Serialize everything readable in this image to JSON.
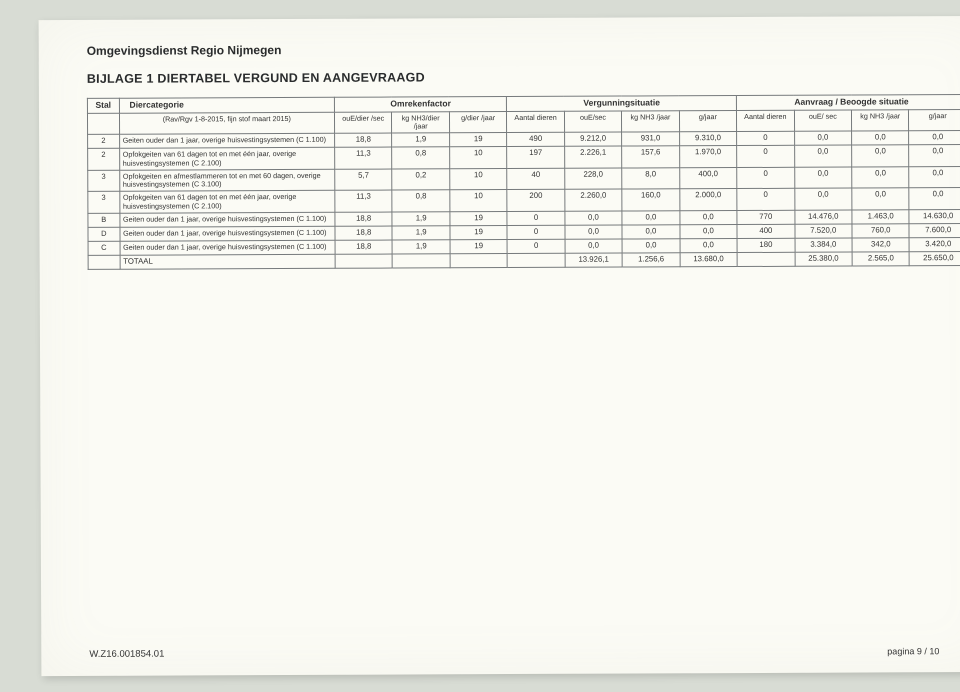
{
  "org": "Omgevingsdienst Regio Nijmegen",
  "title": "BIJLAGE 1 DIERTABEL VERGUND EN AANGEVRAAGD",
  "group_headers": {
    "stal": "Stal",
    "diercat": "Diercategorie",
    "omreken": "Omrekenfactor",
    "vergun": "Vergunningsituatie",
    "aanvraag": "Aanvraag / Beoogde situatie"
  },
  "sub_headers": {
    "rav": "(Rav/Rgv 1-8-2015, fijn stof maart 2015)",
    "c1": "ouE/dier /sec",
    "c2": "kg NH3/dier /jaar",
    "c3": "g/dier /jaar",
    "c4": "Aantal dieren",
    "c5": "ouE/sec",
    "c6": "kg NH3 /jaar",
    "c7": "g/jaar",
    "c8": "Aantal dieren",
    "c9": "ouE/ sec",
    "c10": "kg NH3 /jaar",
    "c11": "g/jaar"
  },
  "rows": [
    {
      "stal": "2",
      "cat": "Geiten ouder dan 1 jaar, overige huisvestingsystemen (C 1.100)",
      "v": [
        "18,8",
        "1,9",
        "19",
        "490",
        "9.212,0",
        "931,0",
        "9.310,0",
        "0",
        "0,0",
        "0,0",
        "0,0"
      ]
    },
    {
      "stal": "2",
      "cat": "Opfokgeiten van 61 dagen tot en met één jaar, overige huisvestingsystemen (C 2.100)",
      "v": [
        "11,3",
        "0,8",
        "10",
        "197",
        "2.226,1",
        "157,6",
        "1.970,0",
        "0",
        "0,0",
        "0,0",
        "0,0"
      ]
    },
    {
      "stal": "3",
      "cat": "Opfokgeiten en afmestlammeren tot en met 60 dagen, overige huisvestingsystemen (C 3.100)",
      "v": [
        "5,7",
        "0,2",
        "10",
        "40",
        "228,0",
        "8,0",
        "400,0",
        "0",
        "0,0",
        "0,0",
        "0,0"
      ]
    },
    {
      "stal": "3",
      "cat": "Opfokgeiten van 61 dagen tot en met één jaar, overige huisvestingsystemen (C 2.100)",
      "v": [
        "11,3",
        "0,8",
        "10",
        "200",
        "2.260,0",
        "160,0",
        "2.000,0",
        "0",
        "0,0",
        "0,0",
        "0,0"
      ]
    },
    {
      "stal": "B",
      "cat": "Geiten ouder dan 1 jaar, overige huisvestingsystemen (C 1.100)",
      "v": [
        "18,8",
        "1,9",
        "19",
        "0",
        "0,0",
        "0,0",
        "0,0",
        "770",
        "14.476,0",
        "1.463,0",
        "14.630,0"
      ]
    },
    {
      "stal": "D",
      "cat": "Geiten ouder dan 1 jaar, overige huisvestingsystemen (C 1.100)",
      "v": [
        "18,8",
        "1,9",
        "19",
        "0",
        "0,0",
        "0,0",
        "0,0",
        "400",
        "7.520,0",
        "760,0",
        "7.600,0"
      ]
    },
    {
      "stal": "C",
      "cat": "Geiten ouder dan 1 jaar, overige huisvestingsystemen (C 1.100)",
      "v": [
        "18,8",
        "1,9",
        "19",
        "0",
        "0,0",
        "0,0",
        "0,0",
        "180",
        "3.384,0",
        "342,0",
        "3.420,0"
      ]
    }
  ],
  "total": {
    "label": "TOTAAL",
    "v": [
      "",
      "",
      "",
      "",
      "13.926,1",
      "1.256,6",
      "13.680,0",
      "",
      "25.380,0",
      "2.565,0",
      "25.650,0"
    ]
  },
  "footer_ref": "W.Z16.001854.01",
  "page_num": "pagina 9 / 10",
  "colors": {
    "page_bg": "#fbfbf5",
    "border": "#767a7c",
    "text": "#2a2c2d"
  }
}
